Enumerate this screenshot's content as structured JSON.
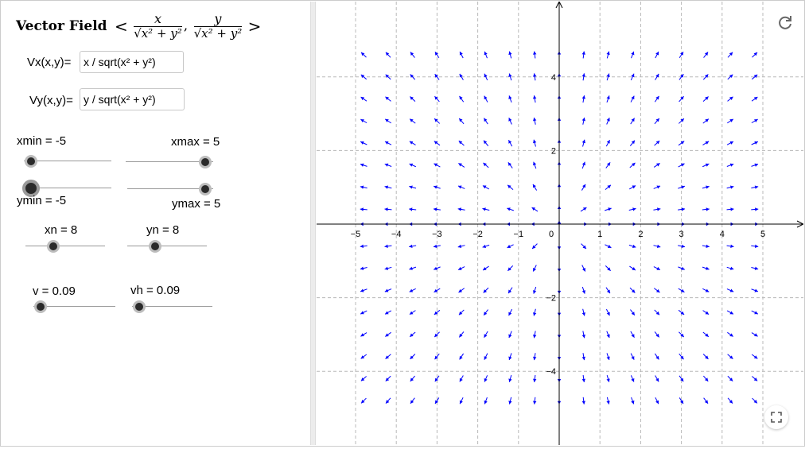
{
  "title": {
    "bold": "Vector Field",
    "open": "<",
    "sep": ",",
    "close": ">",
    "x_num": "x",
    "x_den": "√x² + y²",
    "y_num": "y",
    "y_den": "√x² + y²"
  },
  "inputs": {
    "vx_label": "Vx(x,y)=",
    "vx_value": "x / sqrt(x² + y²)",
    "vy_label": "Vy(x,y)=",
    "vy_value": "y / sqrt(x² + y²)"
  },
  "sliders": {
    "xmin": {
      "label": "xmin = -5",
      "value": -5
    },
    "xmax": {
      "label": "xmax = 5",
      "value": 5
    },
    "ymin": {
      "label": "ymin = -5",
      "value": -5
    },
    "ymax": {
      "label": "ymax = 5",
      "value": 5
    },
    "xn": {
      "label": "xn = 8",
      "value": 8
    },
    "yn": {
      "label": "yn = 8",
      "value": 8
    },
    "v": {
      "label": "v = 0.09",
      "value": 0.09
    },
    "vh": {
      "label": "vh = 0.09",
      "value": 0.09
    }
  },
  "icons": {
    "reset": "reset-icon",
    "fullscreen": "fullscreen-icon"
  },
  "colors": {
    "arrow": "#0000ff",
    "grid": "#b8b8b8",
    "axis": "#000000"
  },
  "chart_data": {
    "type": "scatter",
    "field": "unit radial vector field <x/√(x²+y²), y/√(x²+y²)>",
    "x_ticks": [
      "−5",
      "−4",
      "−3",
      "−2",
      "−1",
      "0",
      "1",
      "2",
      "3",
      "4",
      "5"
    ],
    "y_ticks": [
      "4",
      "2",
      "−2",
      "−4"
    ],
    "x_range": [
      -5.0,
      5.0
    ],
    "y_range": [
      -5.3,
      5.3
    ],
    "sample_x": [
      -4.8,
      -4.2,
      -3.6,
      -3.0,
      -2.4,
      -1.8,
      -1.2,
      -0.6,
      0.0,
      0.6,
      1.2,
      1.8,
      2.4,
      3.0,
      3.6,
      4.2,
      4.8
    ],
    "sample_y": [
      4.6,
      4.0,
      3.4,
      2.8,
      2.2,
      1.6,
      1.0,
      0.4,
      0.0,
      -0.6,
      -1.2,
      -1.8,
      -2.4,
      -3.0,
      -3.6,
      -4.2,
      -4.8
    ],
    "grid": true
  }
}
